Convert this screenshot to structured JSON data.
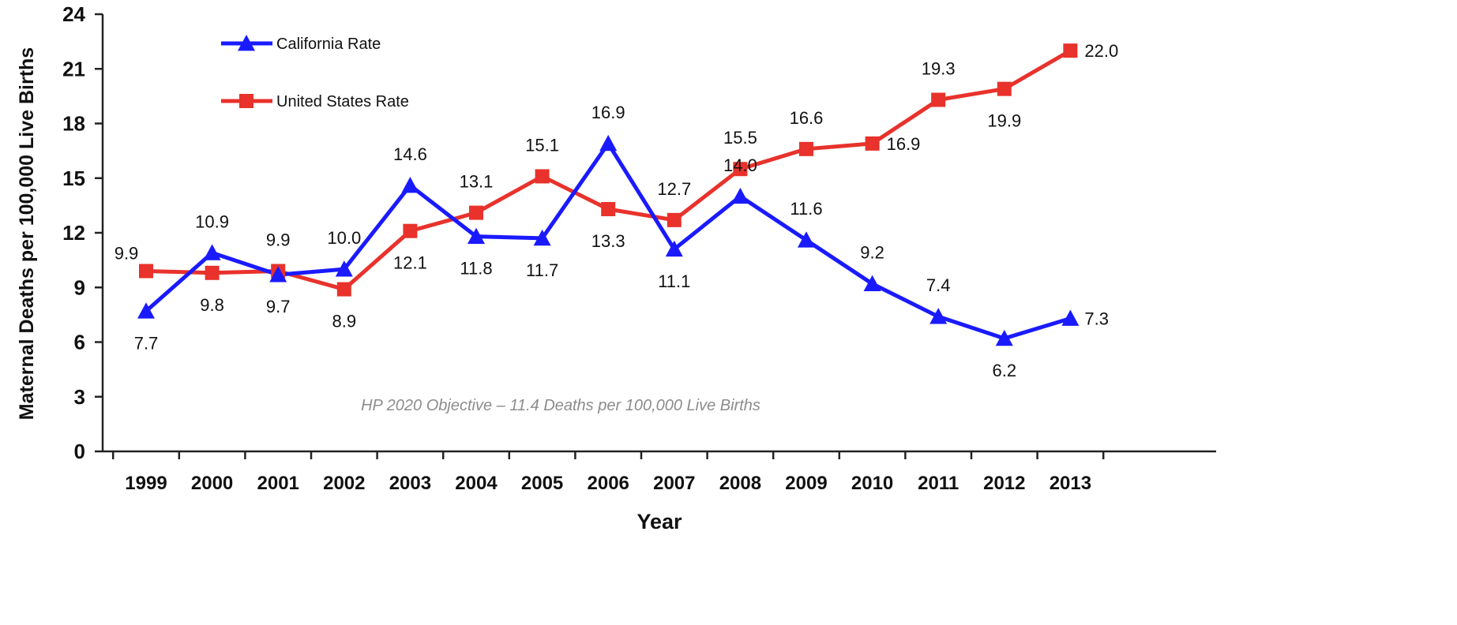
{
  "chart_data": {
    "type": "line",
    "categories": [
      "1999",
      "2000",
      "2001",
      "2002",
      "2003",
      "2004",
      "2005",
      "2006",
      "2007",
      "2008",
      "2009",
      "2010",
      "2011",
      "2012",
      "2013"
    ],
    "series": [
      {
        "name": "California Rate",
        "color": "#1a1aff",
        "marker": "triangle",
        "values": [
          7.7,
          10.9,
          9.7,
          10.0,
          14.6,
          11.8,
          11.7,
          16.9,
          11.1,
          14.0,
          11.6,
          9.2,
          7.4,
          6.2,
          7.3
        ]
      },
      {
        "name": "United States Rate",
        "color": "#e8322b",
        "marker": "square",
        "values": [
          9.9,
          9.8,
          9.9,
          8.9,
          12.1,
          13.1,
          15.1,
          13.3,
          12.7,
          15.5,
          16.6,
          16.9,
          19.3,
          19.9,
          22.0
        ]
      }
    ],
    "xlabel": "Year",
    "ylabel": "Maternal Deaths per 100,000 Live Births",
    "ylim": [
      0,
      24
    ],
    "yticks": [
      "0",
      "3",
      "6",
      "9",
      "12",
      "15",
      "18",
      "21",
      "24"
    ],
    "legend_position": "top-left",
    "grid": false,
    "annotation": "HP 2020 Objective – 11.4 Deaths per 100,000 Live Births"
  }
}
